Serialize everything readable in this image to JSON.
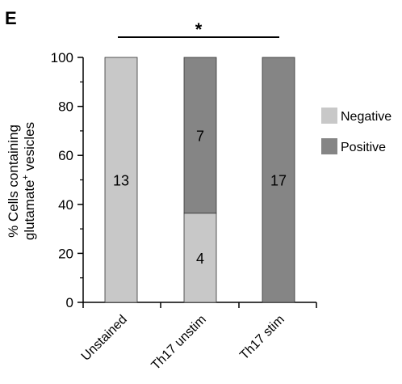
{
  "panel_letter": "E",
  "significance_marker": "*",
  "colors": {
    "negative": "#c8c8c8",
    "positive": "#858585"
  },
  "chart_data": {
    "type": "bar",
    "stacked": true,
    "categories": [
      "Unstained",
      "Th17 unstim",
      "Th17 stim"
    ],
    "series": [
      {
        "name": "Negative",
        "values": [
          100,
          36.4,
          0
        ],
        "counts": [
          "13",
          "4",
          ""
        ]
      },
      {
        "name": "Positive",
        "values": [
          0,
          63.6,
          100
        ],
        "counts": [
          "",
          "7",
          "17"
        ]
      }
    ],
    "ylabel_line1": "% Cells containing",
    "ylabel_line2": "glutamate",
    "ylabel_sup": "+",
    "ylabel_line2_suffix": " vesicles",
    "ylim": [
      0,
      100
    ],
    "yticks": [
      "0",
      "20",
      "40",
      "60",
      "80",
      "100"
    ],
    "legend_position": "right"
  }
}
